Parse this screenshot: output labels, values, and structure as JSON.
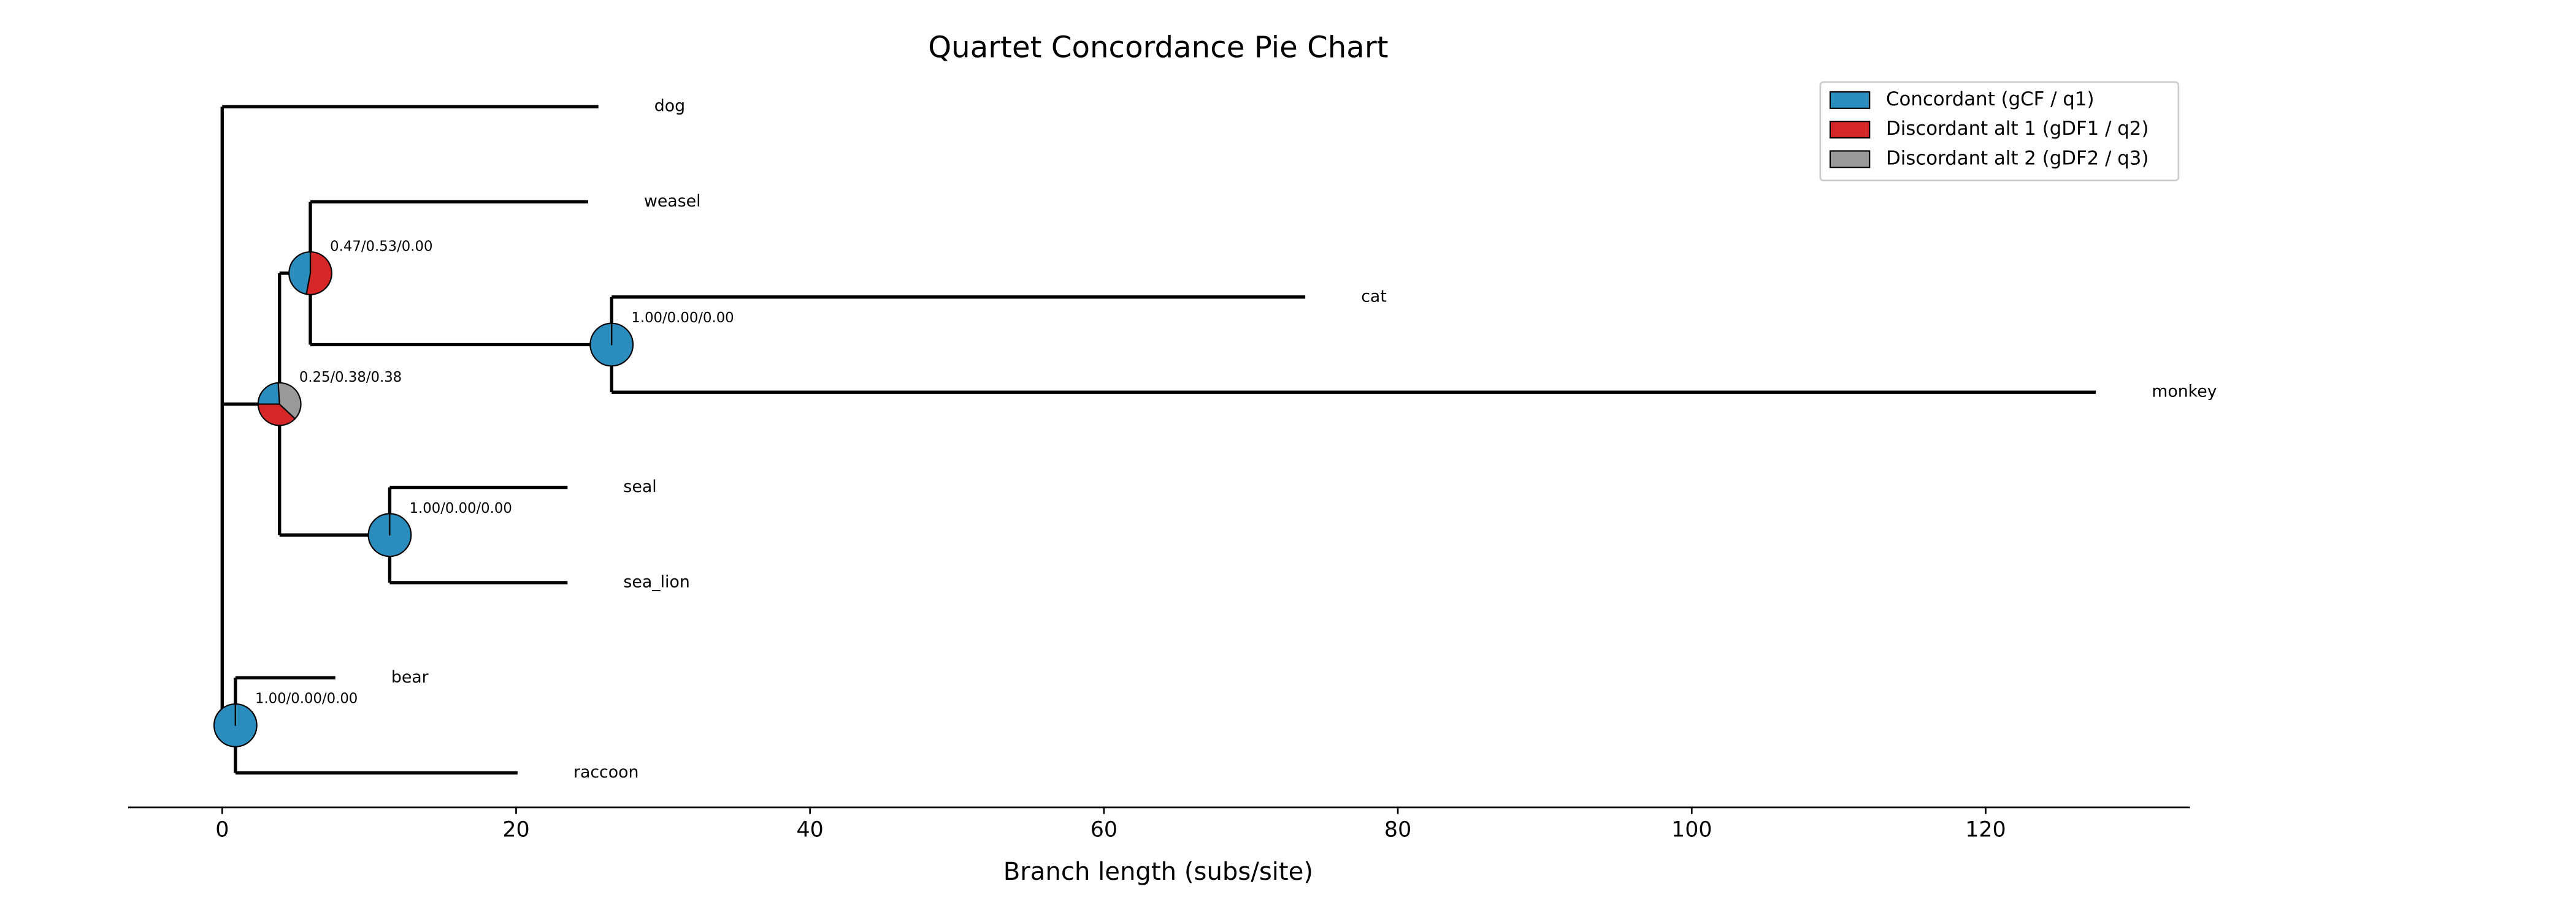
{
  "chart_data": {
    "type": "tree",
    "title": "Quartet Concordance Pie Chart",
    "xlabel": "Branch length (subs/site)",
    "xlim": [
      -6.4,
      133.9
    ],
    "xticks": [
      0,
      20,
      40,
      60,
      80,
      100,
      120
    ],
    "categories": [
      "Concordant (gCF / q1)",
      "Discordant alt 1 (gDF1 / q2)",
      "Discordant alt 2 (gDF2 / q3)"
    ],
    "colors": [
      "#2b8cbe",
      "#d62728",
      "#999999"
    ],
    "legend": "upper right",
    "tree": {
      "x": 0,
      "children": [
        {
          "name": "dog",
          "x": 25.6
        },
        {
          "x": 3.9,
          "label": "0.25/0.38/0.38",
          "values": [
            0.25,
            0.38,
            0.38
          ],
          "children": [
            {
              "x": 6.0,
              "label": "0.47/0.53/0.00",
              "values": [
                0.47,
                0.53,
                0.0
              ],
              "children": [
                {
                  "name": "weasel",
                  "x": 24.9
                },
                {
                  "x": 26.5,
                  "label": "1.00/0.00/0.00",
                  "values": [
                    1.0,
                    0.0,
                    0.0
                  ],
                  "children": [
                    {
                      "name": "cat",
                      "x": 73.7
                    },
                    {
                      "name": "monkey",
                      "x": 127.5
                    }
                  ]
                }
              ]
            },
            {
              "x": 11.4,
              "label": "1.00/0.00/0.00",
              "values": [
                1.0,
                0.0,
                0.0
              ],
              "children": [
                {
                  "name": "seal",
                  "x": 23.5
                },
                {
                  "name": "sea_lion",
                  "x": 23.5
                }
              ]
            }
          ]
        },
        {
          "x": 0.9,
          "label": "1.00/0.00/0.00",
          "values": [
            1.0,
            0.0,
            0.0
          ],
          "children": [
            {
              "name": "bear",
              "x": 7.7
            },
            {
              "name": "raccoon",
              "x": 20.1
            }
          ]
        }
      ]
    }
  }
}
